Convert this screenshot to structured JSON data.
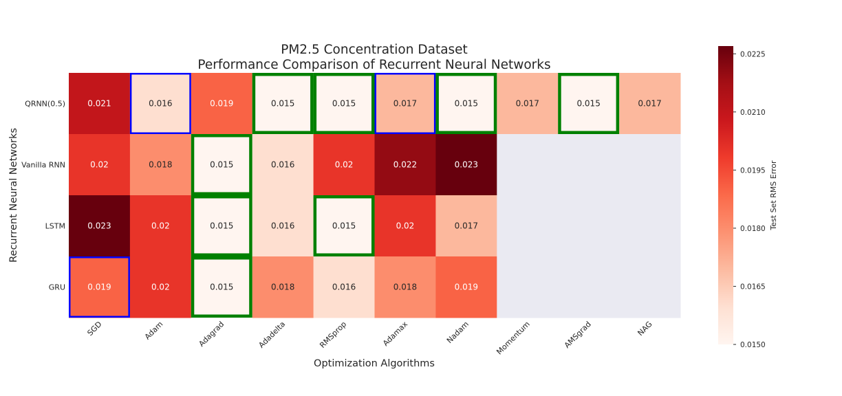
{
  "chart_data": {
    "type": "heatmap",
    "title_line1": "PM2.5 Concentration Dataset",
    "title_line2": "Performance Comparison of Recurrent Neural Networks",
    "xlabel": "Optimization Algorithms",
    "ylabel": "Recurrent Neural Networks",
    "colorbar_label": "Test Set RMS Error",
    "x_categories": [
      "SGD",
      "Adam",
      "Adagrad",
      "Adadelta",
      "RMSprop",
      "Adamax",
      "Nadam",
      "Momentum",
      "AMSgrad",
      "NAG"
    ],
    "y_categories": [
      "QRNN(0.5)",
      "Vanilla RNN",
      "LSTM",
      "GRU"
    ],
    "values": [
      [
        0.021,
        0.016,
        0.019,
        0.015,
        0.015,
        0.017,
        0.015,
        0.017,
        0.015,
        0.017
      ],
      [
        0.02,
        0.018,
        0.015,
        0.016,
        0.02,
        0.022,
        0.023,
        null,
        null,
        null
      ],
      [
        0.023,
        0.02,
        0.015,
        0.016,
        0.015,
        0.02,
        0.017,
        null,
        null,
        null
      ],
      [
        0.019,
        0.02,
        0.015,
        0.018,
        0.016,
        0.018,
        0.019,
        null,
        null,
        null
      ]
    ],
    "colorbar_range": [
      0.015,
      0.0227
    ],
    "colorbar_ticks": [
      "0.0150",
      "0.0165",
      "0.0180",
      "0.0195",
      "0.0210",
      "0.0225"
    ],
    "colormap": "Reds",
    "missing_color": "#eaeaf2",
    "highlights": [
      {
        "row": 0,
        "col": 1,
        "color": "#0000ff"
      },
      {
        "row": 0,
        "col": 5,
        "color": "#0000ff"
      },
      {
        "row": 3,
        "col": 0,
        "color": "#0000ff"
      },
      {
        "row": 0,
        "col": 3,
        "color": "#008000"
      },
      {
        "row": 0,
        "col": 4,
        "color": "#008000"
      },
      {
        "row": 0,
        "col": 6,
        "color": "#008000"
      },
      {
        "row": 0,
        "col": 8,
        "color": "#008000"
      },
      {
        "row": 1,
        "col": 2,
        "color": "#008000"
      },
      {
        "row": 2,
        "col": 2,
        "color": "#008000"
      },
      {
        "row": 2,
        "col": 4,
        "color": "#008000"
      },
      {
        "row": 3,
        "col": 2,
        "color": "#008000"
      }
    ]
  }
}
